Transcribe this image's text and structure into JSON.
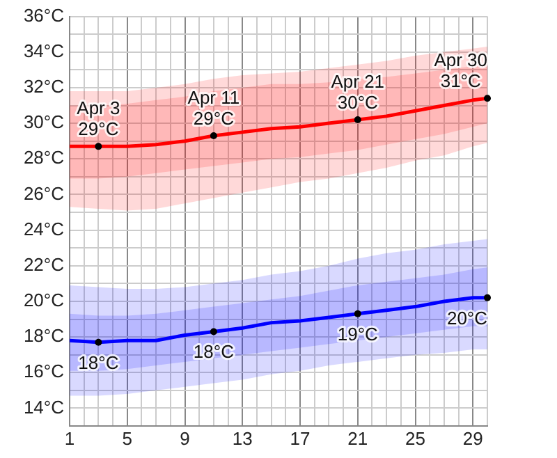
{
  "chart_data": {
    "type": "line",
    "x": [
      1,
      3,
      5,
      7,
      9,
      11,
      13,
      15,
      17,
      19,
      21,
      23,
      25,
      27,
      29,
      30
    ],
    "series": [
      {
        "color": "#ff0000",
        "values": [
          28.7,
          28.7,
          28.7,
          28.8,
          29.0,
          29.3,
          29.5,
          29.7,
          29.8,
          30.0,
          30.2,
          30.4,
          30.7,
          31.0,
          31.3,
          31.4
        ],
        "upper": [
          31.0,
          31.0,
          31.1,
          31.3,
          31.5,
          31.8,
          32.0,
          32.2,
          32.2,
          32.3,
          32.5,
          32.6,
          32.8,
          33.0,
          33.2,
          33.3
        ],
        "lower": [
          26.9,
          26.9,
          27.0,
          27.2,
          27.4,
          27.6,
          27.8,
          28.0,
          28.1,
          28.3,
          28.5,
          28.8,
          29.1,
          29.4,
          29.8,
          30.0
        ]
      },
      {
        "color": "#0000ff",
        "values": [
          17.8,
          17.7,
          17.8,
          17.8,
          18.1,
          18.3,
          18.5,
          18.8,
          18.9,
          19.1,
          19.3,
          19.5,
          19.7,
          20.0,
          20.2,
          20.2
        ],
        "upper": [
          19.3,
          19.2,
          19.2,
          19.3,
          19.5,
          19.7,
          19.9,
          20.1,
          20.3,
          20.6,
          20.9,
          21.1,
          21.3,
          21.5,
          21.8,
          21.9
        ],
        "lower": [
          16.1,
          16.1,
          16.2,
          16.4,
          16.6,
          16.8,
          17.0,
          17.2,
          17.4,
          17.6,
          17.8,
          18.0,
          18.2,
          18.4,
          18.6,
          18.6
        ]
      },
      {
        "color": "#ff0000",
        "values": [
          null,
          null,
          null,
          null,
          null,
          null,
          null,
          null,
          null,
          null,
          null,
          null,
          null,
          null,
          null,
          null
        ],
        "lower": [
          25.3,
          25.2,
          25.1,
          25.2,
          25.5,
          25.8,
          26.1,
          26.4,
          26.7,
          26.9,
          27.2,
          27.5,
          27.9,
          28.2,
          28.7,
          28.9
        ],
        "upper": [
          31.8,
          31.8,
          31.8,
          32.0,
          32.2,
          32.5,
          32.7,
          32.8,
          32.9,
          33.1,
          33.3,
          33.5,
          33.8,
          34.0,
          34.2,
          34.3
        ]
      },
      {
        "color": "#0000ff",
        "values": [
          null,
          null,
          null,
          null,
          null,
          null,
          null,
          null,
          null,
          null,
          null,
          null,
          null,
          null,
          null,
          null
        ],
        "lower": [
          14.7,
          14.7,
          14.8,
          15.0,
          15.2,
          15.4,
          15.6,
          15.9,
          16.1,
          16.4,
          16.6,
          16.8,
          17.0,
          17.1,
          17.3,
          17.3
        ],
        "upper": [
          20.9,
          20.8,
          20.7,
          20.7,
          20.8,
          21.0,
          21.2,
          21.5,
          21.7,
          22.0,
          22.4,
          22.7,
          22.9,
          23.2,
          23.4,
          23.5
        ]
      }
    ],
    "xlim": [
      1,
      30
    ],
    "xticks": [
      1,
      {
        "value": 2,
        "label": null
      },
      {
        "value": 3,
        "label": null
      },
      {
        "value": 4,
        "label": null
      },
      5,
      {
        "value": 6,
        "label": null
      },
      {
        "value": 7,
        "label": null
      },
      {
        "value": 8,
        "label": null
      },
      9,
      {
        "value": 10,
        "label": null
      },
      {
        "value": 11,
        "label": null
      },
      {
        "value": 12,
        "label": null
      },
      13,
      {
        "value": 14,
        "label": null
      },
      {
        "value": 15,
        "label": null
      },
      {
        "value": 16,
        "label": null
      },
      17,
      {
        "value": 18,
        "label": null
      },
      {
        "value": 19,
        "label": null
      },
      {
        "value": 20,
        "label": null
      },
      21,
      {
        "value": 22,
        "label": null
      },
      {
        "value": 23,
        "label": null
      },
      {
        "value": 24,
        "label": null
      },
      25,
      {
        "value": 26,
        "label": null
      },
      {
        "value": 27,
        "label": null
      },
      {
        "value": 28,
        "label": null
      },
      29,
      {
        "value": 30,
        "label": null
      }
    ],
    "ylim": [
      13,
      36
    ],
    "yticks": [
      {
        "value": 13,
        "label": null
      },
      {
        "value": 14,
        "label": "14°C"
      },
      {
        "value": 15,
        "label": null
      },
      {
        "value": 16,
        "label": "16°C"
      },
      {
        "value": 17,
        "label": null
      },
      {
        "value": 18,
        "label": "18°C"
      },
      {
        "value": 19,
        "label": null
      },
      {
        "value": 20,
        "label": "20°C"
      },
      {
        "value": 21,
        "label": null
      },
      {
        "value": 22,
        "label": "22°C"
      },
      {
        "value": 23,
        "label": null
      },
      {
        "value": 24,
        "label": "24°C"
      },
      {
        "value": 25,
        "label": null
      },
      {
        "value": 26,
        "label": "26°C"
      },
      {
        "value": 27,
        "label": null
      },
      {
        "value": 28,
        "label": "28°C"
      },
      {
        "value": 29,
        "label": null
      },
      {
        "value": 30,
        "label": "30°C"
      },
      {
        "value": 31,
        "label": null
      },
      {
        "value": 32,
        "label": "32°C"
      },
      {
        "value": 33,
        "label": null
      },
      {
        "value": 34,
        "label": "34°C"
      },
      {
        "value": 35,
        "label": null
      },
      {
        "value": 36,
        "label": "36°C"
      }
    ],
    "grid": true,
    "legend": false,
    "marker": "none",
    "annotations": [
      {
        "text": "Apr 3\n29°C",
        "x": 3,
        "y": 28.7
      },
      {
        "text": "Apr 11\n29°C",
        "x": 11,
        "y": 29.3
      },
      {
        "text": "Apr 21\n30°C",
        "x": 21,
        "y": 30.2
      },
      {
        "text": "Apr 30\n31°C",
        "x": 30,
        "y": 31.4
      },
      {
        "text": "18°C",
        "x": 3,
        "y": 17.7
      },
      {
        "text": "18°C",
        "x": 11,
        "y": 18.3
      },
      {
        "text": "19°C",
        "x": 21,
        "y": 19.3
      },
      {
        "text": "20°C",
        "x": 30,
        "y": 20.2
      }
    ]
  }
}
